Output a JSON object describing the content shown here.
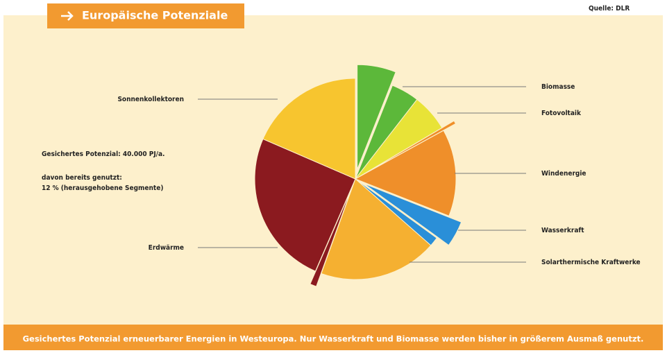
{
  "header": {
    "title": "Europäische Potenziale",
    "source": "Quelle: DLR"
  },
  "notes": [
    "Gesichertes Potenzial: 40.000 PJ/a.",
    "davon bereits genutzt:",
    "12 % (herausgehobene Segmente)"
  ],
  "caption": "Gesichertes Potenzial erneuerbarer Energien in Westeuropa. Nur Wasserkraft und Biomasse werden bisher in größerem Ausmaß genutzt.",
  "chart_data": {
    "type": "pie",
    "categories": [
      "Biomasse",
      "Fotovoltaik",
      "Windenergie",
      "Wasserkraft",
      "Solarthermische Kraftwerke",
      "Erdwärme",
      "Sonnenkollektoren"
    ],
    "values": [
      4.5,
      6,
      14,
      1.5,
      19,
      25,
      18.5
    ],
    "highlight_values": [
      6,
      0,
      0.5,
      4,
      0,
      1,
      0
    ],
    "colors": [
      "#5cb83a",
      "#e8e337",
      "#ef8f2a",
      "#2a8fd8",
      "#f5b031",
      "#8b1a1f",
      "#f7c52f"
    ]
  }
}
